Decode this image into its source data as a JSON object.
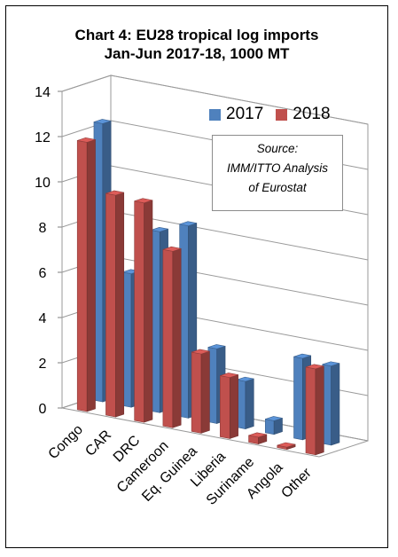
{
  "title_line1": "Chart 4: EU28 tropical log imports",
  "title_line2": "Jan-Jun 2017-18, 1000 MT",
  "source_note": {
    "line1": "Source:",
    "line2": "IMM/ITTO Analysis",
    "line3": "of Eurostat"
  },
  "chart_data": {
    "type": "bar",
    "style": "3d-clustered-column",
    "title": "Chart 4: EU28 tropical log imports Jan-Jun 2017-18, 1000 MT",
    "categories": [
      "Congo",
      "CAR",
      "DRC",
      "Cameroon",
      "Eq. Guinea",
      "Liberia",
      "Suriname",
      "Angola",
      "Other"
    ],
    "series": [
      {
        "name": "2017",
        "color": "#4f81bd",
        "values": [
          12.3,
          5.9,
          8.0,
          8.5,
          3.3,
          2.1,
          0.6,
          3.6,
          3.5
        ]
      },
      {
        "name": "2018",
        "color": "#c0504d",
        "values": [
          11.9,
          9.8,
          9.7,
          7.8,
          3.5,
          2.7,
          0.3,
          0.1,
          3.8
        ]
      }
    ],
    "yticks": [
      "0",
      "2",
      "4",
      "6",
      "8",
      "10",
      "12",
      "14"
    ],
    "ylim": [
      0,
      14
    ],
    "xlabel": "",
    "ylabel": "",
    "grid": true,
    "legend_position": "top-right"
  }
}
